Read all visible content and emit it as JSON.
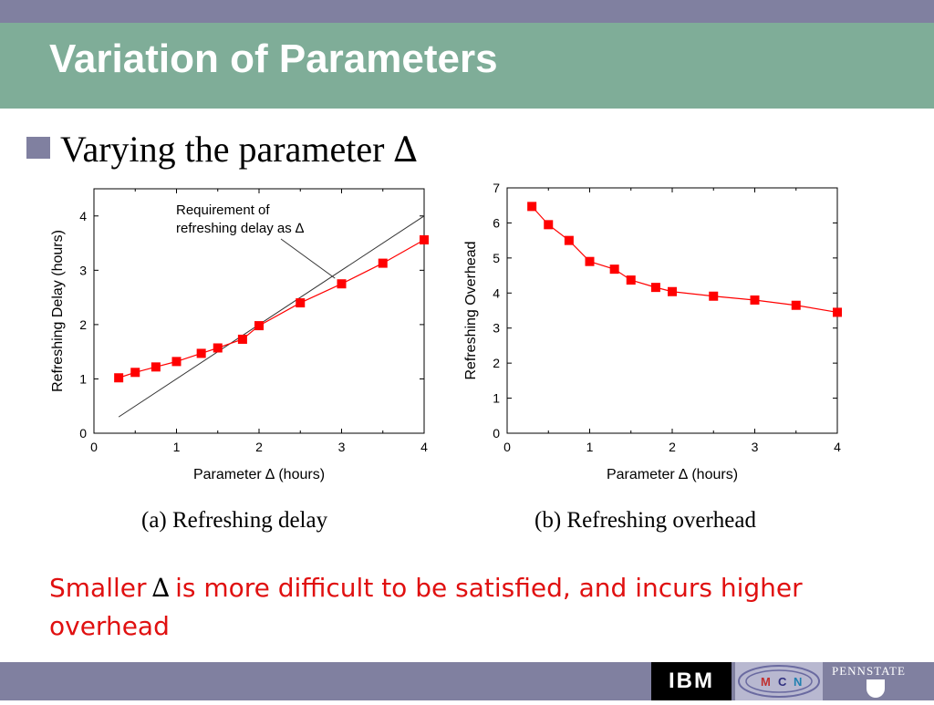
{
  "slide": {
    "title": "Variation of Parameters",
    "bullet": "Varying the parameter",
    "bullet_symbol": "∆",
    "note_prefix": "Smaller",
    "note_symbol": "∆",
    "note_rest": "is more difficult to be satisfied, and incurs higher overhead"
  },
  "logos": {
    "ibm": "IBM",
    "mcn_letters": [
      "M",
      "C",
      "N"
    ],
    "pennstate": "PENNSTATE"
  },
  "colors": {
    "header_band": "#8080a0",
    "title_bar": "#7fad98",
    "series": "#ff0000",
    "note_text": "#e01010"
  },
  "chart_data": [
    {
      "type": "line",
      "caption": "(a)  Refreshing delay",
      "xlabel": "Parameter ∆ (hours)",
      "ylabel": "Refreshing Delay (hours)",
      "xlim": [
        0,
        4
      ],
      "ylim": [
        0,
        4.5
      ],
      "xticks": [
        0,
        1,
        2,
        3,
        4
      ],
      "yticks": [
        0,
        1,
        2,
        3,
        4
      ],
      "annotation": [
        "Requirement of",
        "refreshing delay as ∆"
      ],
      "reference_line": {
        "x": [
          0.3,
          4.0
        ],
        "y": [
          0.3,
          4.0
        ]
      },
      "series": [
        {
          "x": [
            0.3,
            0.5,
            0.75,
            1.0,
            1.3,
            1.5,
            1.8,
            2.0,
            2.5,
            3.0,
            3.5,
            4.0
          ],
          "values": [
            1.02,
            1.12,
            1.22,
            1.32,
            1.47,
            1.57,
            1.73,
            1.98,
            2.4,
            2.75,
            3.13,
            3.56
          ]
        }
      ]
    },
    {
      "type": "line",
      "caption": "(b)  Refreshing overhead",
      "xlabel": "Parameter ∆ (hours)",
      "ylabel": "Refreshing Overhead",
      "xlim": [
        0,
        4
      ],
      "ylim": [
        0,
        7
      ],
      "xticks": [
        0,
        1,
        2,
        3,
        4
      ],
      "yticks": [
        0,
        1,
        2,
        3,
        4,
        5,
        6,
        7
      ],
      "series": [
        {
          "x": [
            0.3,
            0.5,
            0.75,
            1.0,
            1.3,
            1.5,
            1.8,
            2.0,
            2.5,
            3.0,
            3.5,
            4.0
          ],
          "values": [
            6.47,
            5.95,
            5.5,
            4.9,
            4.68,
            4.37,
            4.16,
            4.04,
            3.91,
            3.8,
            3.65,
            3.45
          ]
        }
      ]
    }
  ]
}
